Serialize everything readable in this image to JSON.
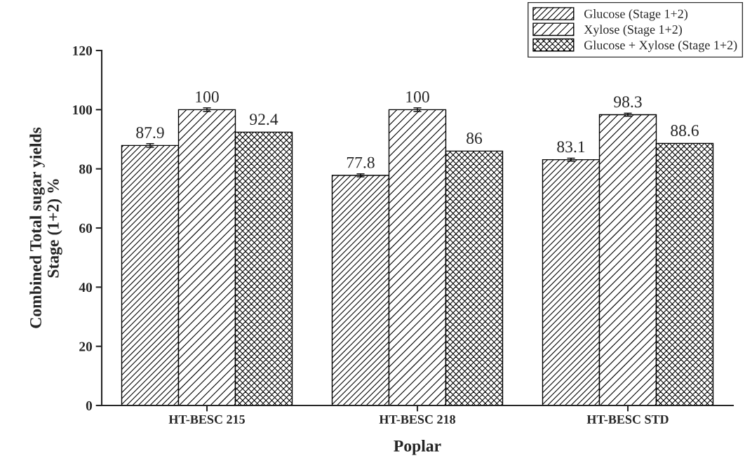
{
  "chart_data": {
    "type": "bar",
    "categories": [
      "HT-BESC 215",
      "HT-BESC 218",
      "HT-BESC STD"
    ],
    "series": [
      {
        "name": "Glucose (Stage 1+2)",
        "color": "#000000",
        "values": [
          87.9,
          77.8,
          83.1
        ],
        "errors": [
          0.6,
          0.5,
          0.5
        ]
      },
      {
        "name": "Xylose (Stage 1+2)",
        "color": "#000000",
        "values": [
          100,
          100,
          98.3
        ],
        "errors": [
          0.6,
          0.6,
          0.5
        ]
      },
      {
        "name": "Glucose + Xylose (Stage 1+2)",
        "color": "#000000",
        "values": [
          92.4,
          86,
          88.6
        ]
      }
    ],
    "xlabel": "Poplar",
    "ylabel": "Combined Total sugar yields\nStage (1+2) %",
    "ylim": [
      0,
      120
    ],
    "yticks": [
      0,
      20,
      40,
      60,
      80,
      100,
      120
    ],
    "data_labels": true,
    "grid": false,
    "legend": "top right"
  }
}
